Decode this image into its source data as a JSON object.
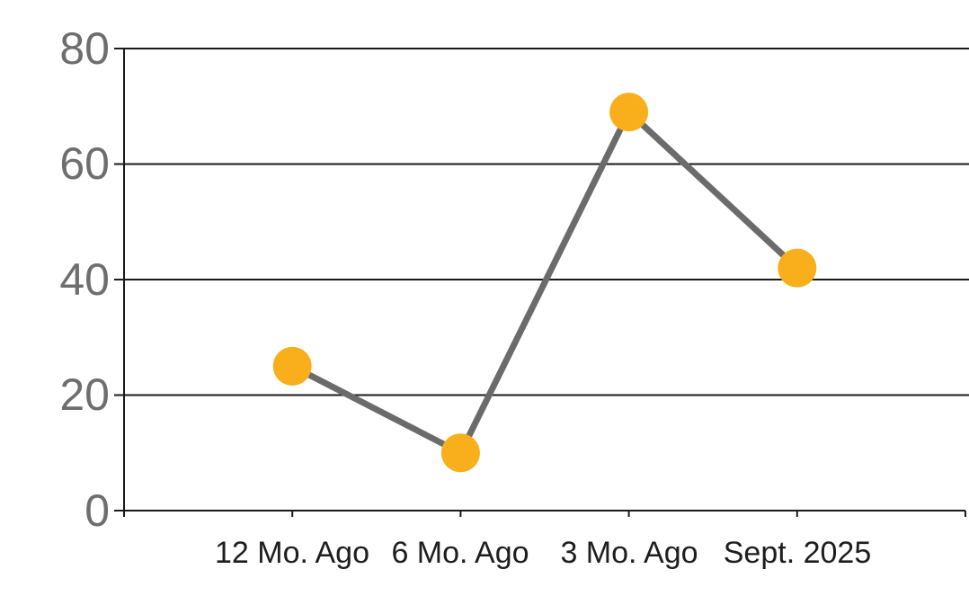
{
  "chart_data": {
    "type": "line",
    "categories": [
      "12 Mo. Ago",
      "6 Mo. Ago",
      "3 Mo. Ago",
      "Sept. 2025"
    ],
    "series": [
      {
        "name": "values",
        "values": [
          25,
          10,
          69,
          42
        ]
      }
    ],
    "title": "",
    "xlabel": "",
    "ylabel": "",
    "ylim": [
      0,
      80
    ],
    "yticks": [
      0,
      20,
      40,
      60,
      80
    ],
    "grid": "horizontal",
    "legend_position": "none",
    "colors": {
      "marker": "#F9AE1B",
      "line": "#6B6B6B",
      "axis_and_grid": "#1A1A1A",
      "ytick_labels": "#6E6E6E",
      "xtick_labels": "#1E1E1E",
      "background": "#FFFFFF"
    }
  }
}
